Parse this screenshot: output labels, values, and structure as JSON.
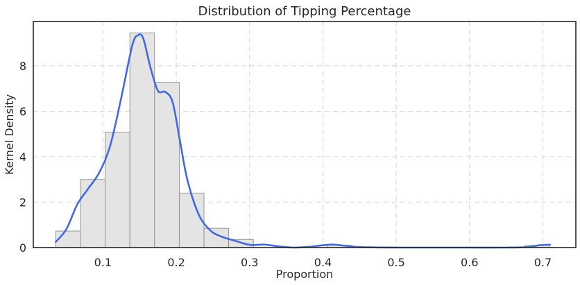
{
  "chart_data": {
    "type": "histogram",
    "title": "Distribution of Tipping Percentage",
    "xlabel": "Proportion",
    "ylabel": "Kernel Density",
    "xlim": [
      0.005,
      0.745
    ],
    "ylim": [
      0,
      9.95
    ],
    "x_ticks": [
      0.1,
      0.2,
      0.3,
      0.4,
      0.5,
      0.6,
      0.7
    ],
    "x_tick_labels": [
      "0.1",
      "0.2",
      "0.3",
      "0.4",
      "0.5",
      "0.6",
      "0.7"
    ],
    "y_ticks": [
      0,
      2,
      4,
      6,
      8
    ],
    "y_tick_labels": [
      "0",
      "2",
      "4",
      "6",
      "8"
    ],
    "grid": true,
    "bins": [
      {
        "x0": 0.0356,
        "x1": 0.0693,
        "density": 0.73
      },
      {
        "x0": 0.0693,
        "x1": 0.103,
        "density": 3.0
      },
      {
        "x0": 0.103,
        "x1": 0.1367,
        "density": 5.08
      },
      {
        "x0": 0.1367,
        "x1": 0.1704,
        "density": 9.45
      },
      {
        "x0": 0.1704,
        "x1": 0.2041,
        "density": 7.28
      },
      {
        "x0": 0.2041,
        "x1": 0.2378,
        "density": 2.4
      },
      {
        "x0": 0.2378,
        "x1": 0.2715,
        "density": 0.85
      },
      {
        "x0": 0.2715,
        "x1": 0.3052,
        "density": 0.36
      },
      {
        "x0": 0.3052,
        "x1": 0.3389,
        "density": 0
      },
      {
        "x0": 0.3389,
        "x1": 0.3726,
        "density": 0
      },
      {
        "x0": 0.3726,
        "x1": 0.4063,
        "density": 0
      },
      {
        "x0": 0.4063,
        "x1": 0.44,
        "density": 0.1
      },
      {
        "x0": 0.44,
        "x1": 0.4737,
        "density": 0
      },
      {
        "x0": 0.4737,
        "x1": 0.5074,
        "density": 0
      },
      {
        "x0": 0.5074,
        "x1": 0.5411,
        "density": 0
      },
      {
        "x0": 0.5411,
        "x1": 0.5748,
        "density": 0
      },
      {
        "x0": 0.5748,
        "x1": 0.6085,
        "density": 0
      },
      {
        "x0": 0.6085,
        "x1": 0.6422,
        "density": 0
      },
      {
        "x0": 0.6422,
        "x1": 0.6759,
        "density": 0
      },
      {
        "x0": 0.6759,
        "x1": 0.7096,
        "density": 0.1
      }
    ],
    "kde": {
      "x": [
        0.0356,
        0.05,
        0.065,
        0.08,
        0.095,
        0.11,
        0.125,
        0.14,
        0.148,
        0.155,
        0.165,
        0.175,
        0.185,
        0.195,
        0.205,
        0.215,
        0.23,
        0.245,
        0.26,
        0.28,
        0.3,
        0.32,
        0.34,
        0.36,
        0.38,
        0.4,
        0.415,
        0.43,
        0.45,
        0.5,
        0.55,
        0.6,
        0.65,
        0.68,
        0.695,
        0.71
      ],
      "y": [
        0.25,
        0.8,
        1.9,
        2.6,
        3.3,
        4.5,
        6.6,
        8.9,
        9.35,
        9.2,
        7.9,
        6.9,
        6.85,
        6.4,
        4.7,
        3.0,
        1.5,
        0.8,
        0.5,
        0.3,
        0.12,
        0.13,
        0.05,
        0.0,
        0.03,
        0.1,
        0.13,
        0.08,
        0.02,
        0.0,
        0.0,
        0.0,
        0.0,
        0.02,
        0.1,
        0.13
      ]
    },
    "colors": {
      "bar_fill": "#e4e4e4",
      "bar_edge": "#8c8c8c",
      "kde_line": "#4169e1",
      "grid": "#d9d9d9",
      "axis": "#262626"
    }
  }
}
